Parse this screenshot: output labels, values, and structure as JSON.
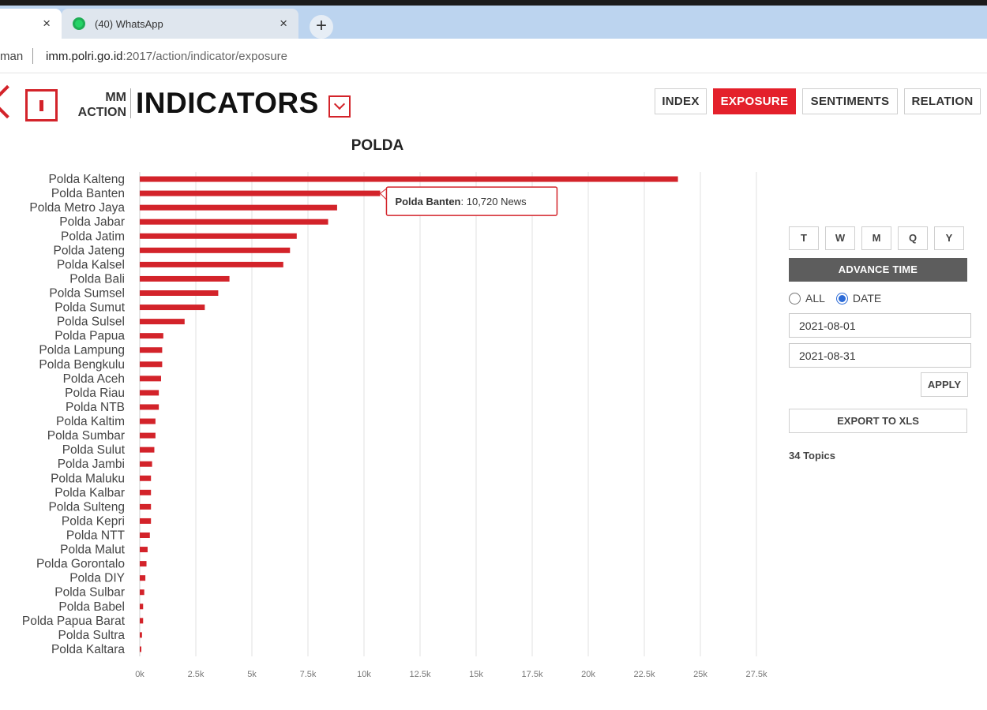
{
  "browser": {
    "tabs": [
      {
        "label": ""
      },
      {
        "label": "(40) WhatsApp"
      }
    ],
    "close_glyph": "×",
    "new_tab_glyph": "+",
    "site_prefix": "man",
    "url_host": "imm.polri.go.id",
    "url_path": ":2017/action/indicator/exposure"
  },
  "header": {
    "brand_line1": "MM",
    "brand_line2": "ACTION",
    "title": "INDICATORS",
    "nav_tabs": [
      "INDEX",
      "EXPOSURE",
      "SENTIMENTS",
      "RELATION"
    ],
    "active_tab": "EXPOSURE"
  },
  "panel": {
    "range_buttons": [
      "T",
      "W",
      "M",
      "Q",
      "Y"
    ],
    "advance_label": "ADVANCE TIME",
    "radio_all": "ALL",
    "radio_date": "DATE",
    "selected_radio": "DATE",
    "start_date": "2021-08-01",
    "end_date": "2021-08-31",
    "apply_label": "APPLY",
    "export_label": "EXPORT TO XLS",
    "topics": "34 Topics"
  },
  "colors": {
    "accent": "#e4202b",
    "bar": "#d3232a",
    "grid": "#e2e2e2"
  },
  "chart_data": {
    "type": "bar",
    "orientation": "horizontal",
    "title": "POLDA",
    "categories": [
      "Polda Kalteng",
      "Polda Banten",
      "Polda Metro Jaya",
      "Polda Jabar",
      "Polda Jatim",
      "Polda Jateng",
      "Polda Kalsel",
      "Polda Bali",
      "Polda Sumsel",
      "Polda Sumut",
      "Polda Sulsel",
      "Polda Papua",
      "Polda Lampung",
      "Polda Bengkulu",
      "Polda Aceh",
      "Polda Riau",
      "Polda NTB",
      "Polda Kaltim",
      "Polda Sumbar",
      "Polda Sulut",
      "Polda Jambi",
      "Polda Maluku",
      "Polda Kalbar",
      "Polda Sulteng",
      "Polda Kepri",
      "Polda NTT",
      "Polda Malut",
      "Polda Gorontalo",
      "Polda DIY",
      "Polda Sulbar",
      "Polda Babel",
      "Polda Papua Barat",
      "Polda Sultra",
      "Polda Kaltara"
    ],
    "values": [
      24000,
      10720,
      8800,
      8400,
      7000,
      6700,
      6400,
      4000,
      3500,
      2900,
      2000,
      1050,
      1000,
      1000,
      950,
      850,
      850,
      700,
      700,
      650,
      550,
      500,
      500,
      500,
      500,
      450,
      350,
      300,
      250,
      200,
      150,
      150,
      100,
      50
    ],
    "xlim": [
      0,
      27500
    ],
    "xticks": [
      0,
      2500,
      5000,
      7500,
      10000,
      12500,
      15000,
      17500,
      20000,
      22500,
      25000,
      27500
    ],
    "xtick_labels": [
      "0k",
      "2.5k",
      "5k",
      "7.5k",
      "10k",
      "12.5k",
      "15k",
      "17.5k",
      "20k",
      "22.5k",
      "25k",
      "27.5k"
    ],
    "grid": true,
    "tooltip": {
      "category": "Polda Banten",
      "label": "Polda Banten",
      "value_text": ": 10,720 News"
    }
  }
}
